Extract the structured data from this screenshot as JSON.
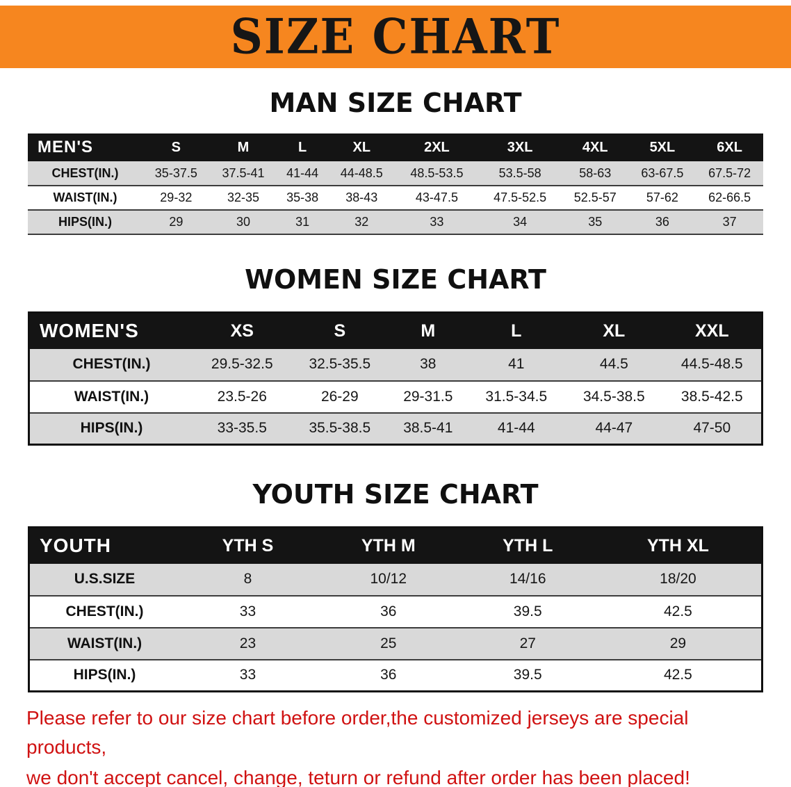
{
  "banner": {
    "title": "SIZE CHART"
  },
  "sections": [
    {
      "id": "men",
      "heading": "MAN SIZE CHART",
      "table": {
        "header": [
          "MEN'S",
          "S",
          "M",
          "L",
          "XL",
          "2XL",
          "3XL",
          "4XL",
          "5XL",
          "6XL"
        ],
        "rows": [
          [
            "CHEST(IN.)",
            "35-37.5",
            "37.5-41",
            "41-44",
            "44-48.5",
            "48.5-53.5",
            "53.5-58",
            "58-63",
            "63-67.5",
            "67.5-72"
          ],
          [
            "WAIST(IN.)",
            "29-32",
            "32-35",
            "35-38",
            "38-43",
            "43-47.5",
            "47.5-52.5",
            "52.5-57",
            "57-62",
            "62-66.5"
          ],
          [
            "HIPS(IN.)",
            "29",
            "30",
            "31",
            "32",
            "33",
            "34",
            "35",
            "36",
            "37"
          ]
        ]
      }
    },
    {
      "id": "women",
      "heading": "WOMEN SIZE CHART",
      "table": {
        "header": [
          "WOMEN'S",
          "XS",
          "S",
          "M",
          "L",
          "XL",
          "XXL"
        ],
        "rows": [
          [
            "CHEST(IN.)",
            "29.5-32.5",
            "32.5-35.5",
            "38",
            "41",
            "44.5",
            "44.5-48.5"
          ],
          [
            "WAIST(IN.)",
            "23.5-26",
            "26-29",
            "29-31.5",
            "31.5-34.5",
            "34.5-38.5",
            "38.5-42.5"
          ],
          [
            "HIPS(IN.)",
            "33-35.5",
            "35.5-38.5",
            "38.5-41",
            "41-44",
            "44-47",
            "47-50"
          ]
        ]
      }
    },
    {
      "id": "youth",
      "heading": "YOUTH SIZE CHART",
      "table": {
        "header": [
          "YOUTH",
          "YTH S",
          "YTH M",
          "YTH L",
          "YTH XL"
        ],
        "rows": [
          [
            "U.S.SIZE",
            "8",
            "10/12",
            "14/16",
            "18/20"
          ],
          [
            "CHEST(IN.)",
            "33",
            "36",
            "39.5",
            "42.5"
          ],
          [
            "WAIST(IN.)",
            "23",
            "25",
            "27",
            "29"
          ],
          [
            "HIPS(IN.)",
            "33",
            "36",
            "39.5",
            "42.5"
          ]
        ]
      }
    }
  ],
  "disclaimer": {
    "line1": "Please refer to our size chart before order,the customized jerseys are special products,",
    "line2": "we don't accept cancel, change, teturn or refund after order has been placed!"
  },
  "colors": {
    "banner_bg": "#f6861f",
    "header_bg": "#141414",
    "row_alt_bg": "#d9d9d9",
    "disclaimer_text": "#d01212"
  }
}
